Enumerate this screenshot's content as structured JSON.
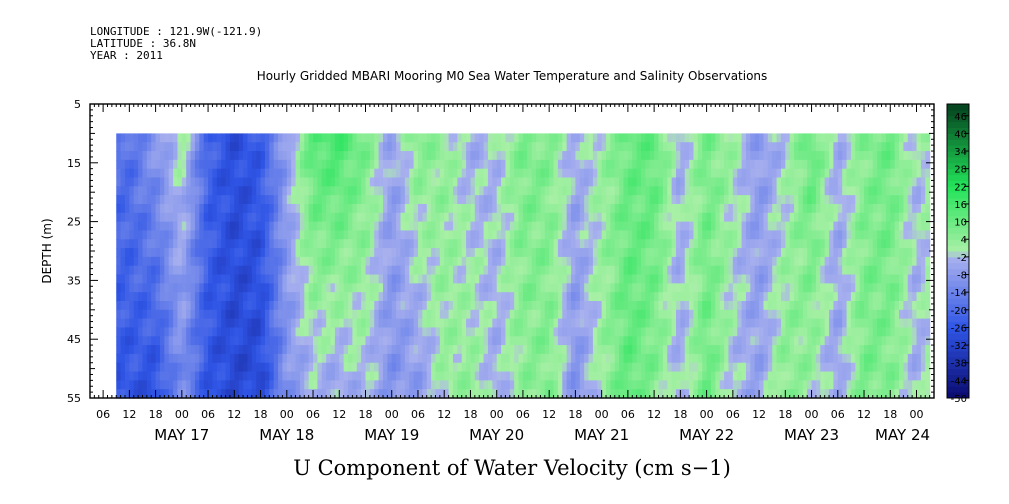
{
  "header": {
    "longitude": "LONGITUDE : 121.9W(-121.9)",
    "latitude": "LATITUDE : 36.8N",
    "year": "YEAR : 2011"
  },
  "chart_data": {
    "type": "heatmap",
    "title": "Hourly Gridded MBARI Mooring M0 Sea Water Temperature and Salinity Observations",
    "xlabel": "U Component of Water Velocity (cm s−1)",
    "ylabel": "DEPTH (m)",
    "x_range": [
      "2011-05-16T03:00",
      "2011-05-24T04:00"
    ],
    "data_x_range": [
      "2011-05-16T09:00",
      "2011-05-24T03:00"
    ],
    "y_range": [
      5,
      55
    ],
    "data_y_range": [
      10,
      55
    ],
    "y_inverted": true,
    "y_ticks": [
      "5",
      "15",
      "25",
      "35",
      "45",
      "55"
    ],
    "x_hour_ticks": [
      "06",
      "12",
      "18",
      "00",
      "06",
      "12",
      "18",
      "00",
      "06",
      "12",
      "18",
      "00",
      "06",
      "12",
      "18",
      "00",
      "06",
      "12",
      "18",
      "00",
      "06",
      "12",
      "18",
      "00",
      "06",
      "12",
      "18",
      "00",
      "06",
      "12",
      "18",
      "00"
    ],
    "x_day_labels": [
      "MAY 17",
      "MAY 18",
      "MAY 19",
      "MAY 20",
      "MAY 21",
      "MAY 22",
      "MAY 23",
      "MAY 24"
    ],
    "colorbar": {
      "range": [
        -50,
        50
      ],
      "tick_labels": [
        "46",
        "40",
        "34",
        "28",
        "22",
        "16",
        "10",
        "4",
        "-2",
        "-8",
        "-14",
        "-20",
        "-26",
        "-32",
        "-38",
        "-44",
        "-50"
      ]
    },
    "colors": {
      "strong_negative": "#0a0a6e",
      "negative": "#2f55e6",
      "weak_negative": "#a9b1ee",
      "weak_positive": "#a9f0a6",
      "positive": "#22e35a",
      "strong_positive": "#05401e"
    },
    "series": [
      {
        "note_hours": [
          9,
          15,
          21,
          27,
          33,
          39,
          45,
          51,
          57,
          63,
          69,
          75,
          81,
          87,
          93,
          99,
          105,
          111,
          117,
          123,
          129,
          135,
          141,
          147,
          153,
          159,
          165,
          171,
          177,
          183,
          189,
          195
        ],
        "values_top_10m": [
          -18,
          -8,
          2,
          -22,
          -28,
          -24,
          -6,
          14,
          16,
          8,
          -6,
          6,
          4,
          -4,
          -2,
          8,
          6,
          -4,
          2,
          10,
          12,
          -4,
          8,
          2,
          -8,
          -2,
          12,
          -4,
          6,
          10,
          -2,
          6
        ],
        "values_bottom_55m": [
          -26,
          -28,
          -12,
          -26,
          -30,
          -30,
          -10,
          -4,
          -6,
          -2,
          -10,
          -8,
          2,
          4,
          -4,
          4,
          6,
          -10,
          2,
          12,
          6,
          -4,
          10,
          -2,
          -6,
          6,
          2,
          -6,
          8,
          6,
          -4,
          4
        ]
      }
    ]
  }
}
